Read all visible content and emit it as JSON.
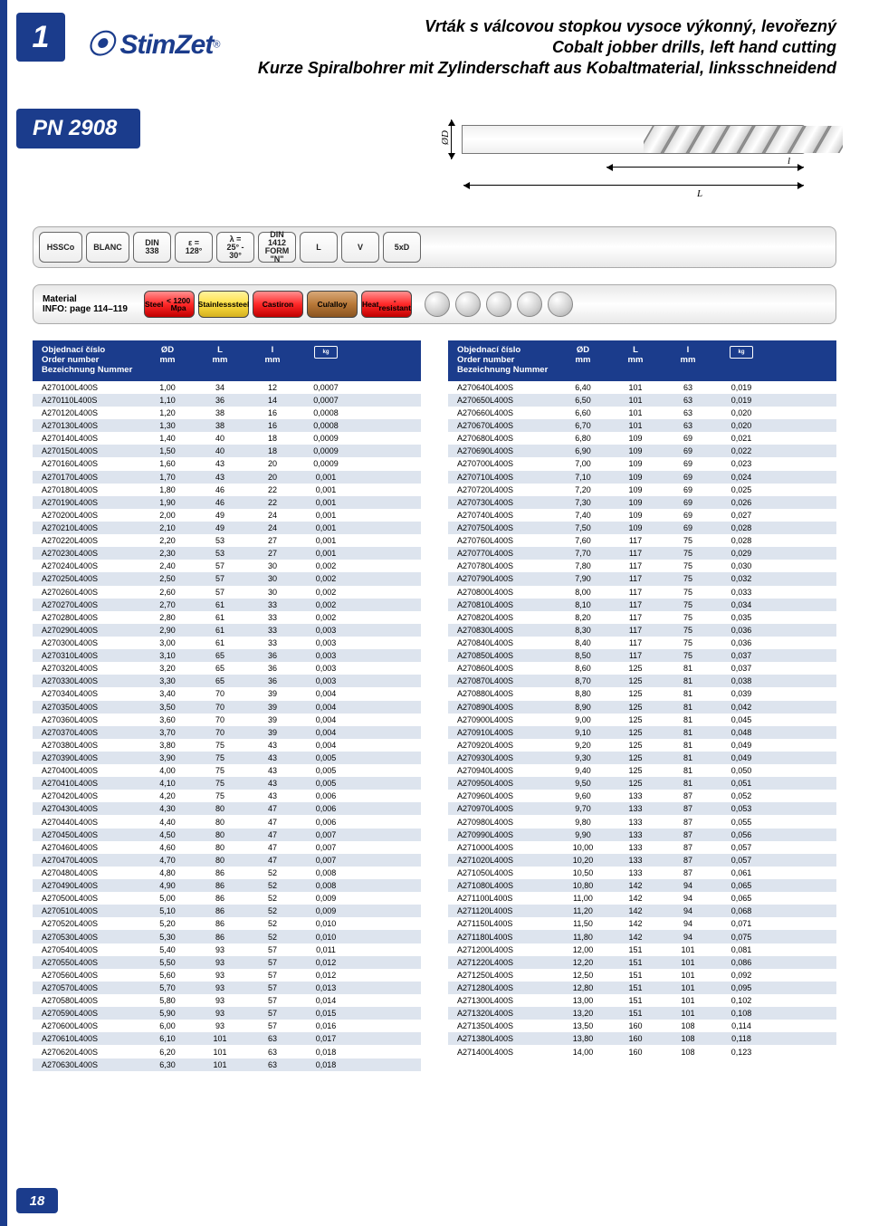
{
  "page": {
    "number_badge": "1",
    "brand": "StimZet",
    "pn_code": "PN 2908",
    "page_num": "18",
    "title_lines": [
      "Vrták s válcovou stopkou vysoce výkonný, levořezný",
      "Cobalt jobber drills, left hand cutting",
      "Kurze Spiralbohrer mit Zylinderschaft aus Kobaltmaterial, linksschneidend"
    ]
  },
  "diagram": {
    "labels": {
      "d": "ØD",
      "l": "L",
      "i": "l"
    }
  },
  "spec_badges": [
    {
      "text": "HSSCo",
      "w": "w1"
    },
    {
      "text": "BLANC",
      "w": "w1"
    },
    {
      "text": "DIN\n338",
      "w": "w2"
    },
    {
      "text": "ε = 128°",
      "w": "w2"
    },
    {
      "text": "λ = 25° - 30°",
      "w": "w2"
    },
    {
      "text": "DIN 1412\nFORM \"N\"",
      "w": "w2"
    },
    {
      "text": "L",
      "w": "w2"
    },
    {
      "text": "V",
      "w": "w2"
    },
    {
      "text": "5xD",
      "w": "w2"
    }
  ],
  "material": {
    "label": "Material\nINFO: page 114–119",
    "pills": [
      {
        "text": "Steel\n< 1200 Mpa",
        "cls": "red"
      },
      {
        "text": "Stainless\nsteel",
        "cls": "yellow"
      },
      {
        "text": "Cast\niron",
        "cls": "red"
      },
      {
        "text": "Cu/alloy",
        "cls": "brown"
      },
      {
        "text": "Heat\n-resistant",
        "cls": "red"
      }
    ],
    "dots": 5
  },
  "table_header": {
    "order": "Objednací číslo\nOrder number\nBezeichnung Nummer",
    "d": "ØD\nmm",
    "L": "L\nmm",
    "l": "l\nmm",
    "weight_icon": "kg"
  },
  "table_left": [
    [
      "A270100L400S",
      "1,00",
      "34",
      "12",
      "0,0007"
    ],
    [
      "A270110L400S",
      "1,10",
      "36",
      "14",
      "0,0007"
    ],
    [
      "A270120L400S",
      "1,20",
      "38",
      "16",
      "0,0008"
    ],
    [
      "A270130L400S",
      "1,30",
      "38",
      "16",
      "0,0008"
    ],
    [
      "A270140L400S",
      "1,40",
      "40",
      "18",
      "0,0009"
    ],
    [
      "A270150L400S",
      "1,50",
      "40",
      "18",
      "0,0009"
    ],
    [
      "A270160L400S",
      "1,60",
      "43",
      "20",
      "0,0009"
    ],
    [
      "A270170L400S",
      "1,70",
      "43",
      "20",
      "0,001"
    ],
    [
      "A270180L400S",
      "1,80",
      "46",
      "22",
      "0,001"
    ],
    [
      "A270190L400S",
      "1,90",
      "46",
      "22",
      "0,001"
    ],
    [
      "A270200L400S",
      "2,00",
      "49",
      "24",
      "0,001"
    ],
    [
      "A270210L400S",
      "2,10",
      "49",
      "24",
      "0,001"
    ],
    [
      "A270220L400S",
      "2,20",
      "53",
      "27",
      "0,001"
    ],
    [
      "A270230L400S",
      "2,30",
      "53",
      "27",
      "0,001"
    ],
    [
      "A270240L400S",
      "2,40",
      "57",
      "30",
      "0,002"
    ],
    [
      "A270250L400S",
      "2,50",
      "57",
      "30",
      "0,002"
    ],
    [
      "A270260L400S",
      "2,60",
      "57",
      "30",
      "0,002"
    ],
    [
      "A270270L400S",
      "2,70",
      "61",
      "33",
      "0,002"
    ],
    [
      "A270280L400S",
      "2,80",
      "61",
      "33",
      "0,002"
    ],
    [
      "A270290L400S",
      "2,90",
      "61",
      "33",
      "0,003"
    ],
    [
      "A270300L400S",
      "3,00",
      "61",
      "33",
      "0,003"
    ],
    [
      "A270310L400S",
      "3,10",
      "65",
      "36",
      "0,003"
    ],
    [
      "A270320L400S",
      "3,20",
      "65",
      "36",
      "0,003"
    ],
    [
      "A270330L400S",
      "3,30",
      "65",
      "36",
      "0,003"
    ],
    [
      "A270340L400S",
      "3,40",
      "70",
      "39",
      "0,004"
    ],
    [
      "A270350L400S",
      "3,50",
      "70",
      "39",
      "0,004"
    ],
    [
      "A270360L400S",
      "3,60",
      "70",
      "39",
      "0,004"
    ],
    [
      "A270370L400S",
      "3,70",
      "70",
      "39",
      "0,004"
    ],
    [
      "A270380L400S",
      "3,80",
      "75",
      "43",
      "0,004"
    ],
    [
      "A270390L400S",
      "3,90",
      "75",
      "43",
      "0,005"
    ],
    [
      "A270400L400S",
      "4,00",
      "75",
      "43",
      "0,005"
    ],
    [
      "A270410L400S",
      "4,10",
      "75",
      "43",
      "0,005"
    ],
    [
      "A270420L400S",
      "4,20",
      "75",
      "43",
      "0,006"
    ],
    [
      "A270430L400S",
      "4,30",
      "80",
      "47",
      "0,006"
    ],
    [
      "A270440L400S",
      "4,40",
      "80",
      "47",
      "0,006"
    ],
    [
      "A270450L400S",
      "4,50",
      "80",
      "47",
      "0,007"
    ],
    [
      "A270460L400S",
      "4,60",
      "80",
      "47",
      "0,007"
    ],
    [
      "A270470L400S",
      "4,70",
      "80",
      "47",
      "0,007"
    ],
    [
      "A270480L400S",
      "4,80",
      "86",
      "52",
      "0,008"
    ],
    [
      "A270490L400S",
      "4,90",
      "86",
      "52",
      "0,008"
    ],
    [
      "A270500L400S",
      "5,00",
      "86",
      "52",
      "0,009"
    ],
    [
      "A270510L400S",
      "5,10",
      "86",
      "52",
      "0,009"
    ],
    [
      "A270520L400S",
      "5,20",
      "86",
      "52",
      "0,010"
    ],
    [
      "A270530L400S",
      "5,30",
      "86",
      "52",
      "0,010"
    ],
    [
      "A270540L400S",
      "5,40",
      "93",
      "57",
      "0,011"
    ],
    [
      "A270550L400S",
      "5,50",
      "93",
      "57",
      "0,012"
    ],
    [
      "A270560L400S",
      "5,60",
      "93",
      "57",
      "0,012"
    ],
    [
      "A270570L400S",
      "5,70",
      "93",
      "57",
      "0,013"
    ],
    [
      "A270580L400S",
      "5,80",
      "93",
      "57",
      "0,014"
    ],
    [
      "A270590L400S",
      "5,90",
      "93",
      "57",
      "0,015"
    ],
    [
      "A270600L400S",
      "6,00",
      "93",
      "57",
      "0,016"
    ],
    [
      "A270610L400S",
      "6,10",
      "101",
      "63",
      "0,017"
    ],
    [
      "A270620L400S",
      "6,20",
      "101",
      "63",
      "0,018"
    ],
    [
      "A270630L400S",
      "6,30",
      "101",
      "63",
      "0,018"
    ]
  ],
  "table_right": [
    [
      "A270640L400S",
      "6,40",
      "101",
      "63",
      "0,019"
    ],
    [
      "A270650L400S",
      "6,50",
      "101",
      "63",
      "0,019"
    ],
    [
      "A270660L400S",
      "6,60",
      "101",
      "63",
      "0,020"
    ],
    [
      "A270670L400S",
      "6,70",
      "101",
      "63",
      "0,020"
    ],
    [
      "A270680L400S",
      "6,80",
      "109",
      "69",
      "0,021"
    ],
    [
      "A270690L400S",
      "6,90",
      "109",
      "69",
      "0,022"
    ],
    [
      "A270700L400S",
      "7,00",
      "109",
      "69",
      "0,023"
    ],
    [
      "A270710L400S",
      "7,10",
      "109",
      "69",
      "0,024"
    ],
    [
      "A270720L400S",
      "7,20",
      "109",
      "69",
      "0,025"
    ],
    [
      "A270730L400S",
      "7,30",
      "109",
      "69",
      "0,026"
    ],
    [
      "A270740L400S",
      "7,40",
      "109",
      "69",
      "0,027"
    ],
    [
      "A270750L400S",
      "7,50",
      "109",
      "69",
      "0,028"
    ],
    [
      "A270760L400S",
      "7,60",
      "117",
      "75",
      "0,028"
    ],
    [
      "A270770L400S",
      "7,70",
      "117",
      "75",
      "0,029"
    ],
    [
      "A270780L400S",
      "7,80",
      "117",
      "75",
      "0,030"
    ],
    [
      "A270790L400S",
      "7,90",
      "117",
      "75",
      "0,032"
    ],
    [
      "A270800L400S",
      "8,00",
      "117",
      "75",
      "0,033"
    ],
    [
      "A270810L400S",
      "8,10",
      "117",
      "75",
      "0,034"
    ],
    [
      "A270820L400S",
      "8,20",
      "117",
      "75",
      "0,035"
    ],
    [
      "A270830L400S",
      "8,30",
      "117",
      "75",
      "0,036"
    ],
    [
      "A270840L400S",
      "8,40",
      "117",
      "75",
      "0,036"
    ],
    [
      "A270850L400S",
      "8,50",
      "117",
      "75",
      "0,037"
    ],
    [
      "A270860L400S",
      "8,60",
      "125",
      "81",
      "0,037"
    ],
    [
      "A270870L400S",
      "8,70",
      "125",
      "81",
      "0,038"
    ],
    [
      "A270880L400S",
      "8,80",
      "125",
      "81",
      "0,039"
    ],
    [
      "A270890L400S",
      "8,90",
      "125",
      "81",
      "0,042"
    ],
    [
      "A270900L400S",
      "9,00",
      "125",
      "81",
      "0,045"
    ],
    [
      "A270910L400S",
      "9,10",
      "125",
      "81",
      "0,048"
    ],
    [
      "A270920L400S",
      "9,20",
      "125",
      "81",
      "0,049"
    ],
    [
      "A270930L400S",
      "9,30",
      "125",
      "81",
      "0,049"
    ],
    [
      "A270940L400S",
      "9,40",
      "125",
      "81",
      "0,050"
    ],
    [
      "A270950L400S",
      "9,50",
      "125",
      "81",
      "0,051"
    ],
    [
      "A270960L400S",
      "9,60",
      "133",
      "87",
      "0,052"
    ],
    [
      "A270970L400S",
      "9,70",
      "133",
      "87",
      "0,053"
    ],
    [
      "A270980L400S",
      "9,80",
      "133",
      "87",
      "0,055"
    ],
    [
      "A270990L400S",
      "9,90",
      "133",
      "87",
      "0,056"
    ],
    [
      "A271000L400S",
      "10,00",
      "133",
      "87",
      "0,057"
    ],
    [
      "A271020L400S",
      "10,20",
      "133",
      "87",
      "0,057"
    ],
    [
      "A271050L400S",
      "10,50",
      "133",
      "87",
      "0,061"
    ],
    [
      "A271080L400S",
      "10,80",
      "142",
      "94",
      "0,065"
    ],
    [
      "A271100L400S",
      "11,00",
      "142",
      "94",
      "0,065"
    ],
    [
      "A271120L400S",
      "11,20",
      "142",
      "94",
      "0,068"
    ],
    [
      "A271150L400S",
      "11,50",
      "142",
      "94",
      "0,071"
    ],
    [
      "A271180L400S",
      "11,80",
      "142",
      "94",
      "0,075"
    ],
    [
      "A271200L400S",
      "12,00",
      "151",
      "101",
      "0,081"
    ],
    [
      "A271220L400S",
      "12,20",
      "151",
      "101",
      "0,086"
    ],
    [
      "A271250L400S",
      "12,50",
      "151",
      "101",
      "0,092"
    ],
    [
      "A271280L400S",
      "12,80",
      "151",
      "101",
      "0,095"
    ],
    [
      "A271300L400S",
      "13,00",
      "151",
      "101",
      "0,102"
    ],
    [
      "A271320L400S",
      "13,20",
      "151",
      "101",
      "0,108"
    ],
    [
      "A271350L400S",
      "13,50",
      "160",
      "108",
      "0,114"
    ],
    [
      "A271380L400S",
      "13,80",
      "160",
      "108",
      "0,118"
    ],
    [
      "A271400L400S",
      "14,00",
      "160",
      "108",
      "0,123"
    ]
  ],
  "colors": {
    "brand_blue": "#1b3c8c",
    "row_alt": "#dde4ee"
  }
}
